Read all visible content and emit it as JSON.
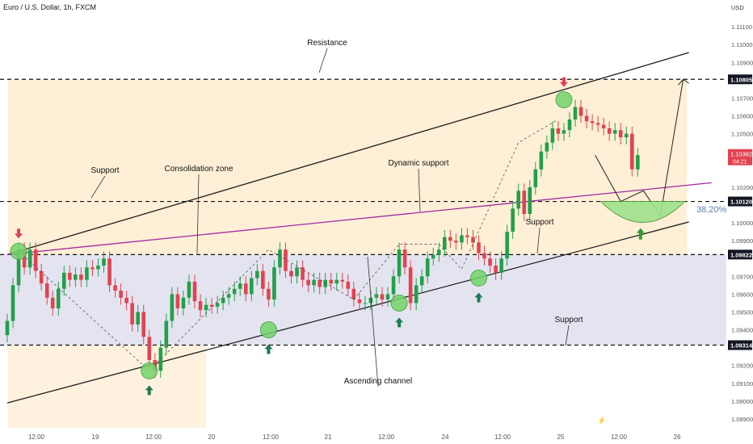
{
  "header": {
    "title": "Euro / U.S. Dollar, 1h, FXCM"
  },
  "colors": {
    "up": "#22a049",
    "down": "#e2434f",
    "resistance_zone": "#fde9c8",
    "support_zone": "#ddddee",
    "channel": "#1f1f1f",
    "dynamic_support": "#a02aa0",
    "target_zone": "#9ee28b",
    "marker": "#74d46a",
    "arrow_up": "#1e7a52",
    "arrow_down": "#e0405a"
  },
  "chart_data": {
    "type": "candlestick",
    "symbol": "Euro / U.S. Dollar",
    "timeframe": "1h",
    "source": "FXCM",
    "y_axis_label": "USD",
    "yrange": [
      1.0885,
      1.1125
    ],
    "y_ticks": [
      "1.11100",
      "1.11000",
      "1.10900",
      "1.10700",
      "1.10600",
      "1.10500",
      "1.10200",
      "1.10000",
      "1.09900",
      "1.09700",
      "1.09600",
      "1.09500",
      "1.09400",
      "1.09200",
      "1.09100",
      "1.09000",
      "1.08900"
    ],
    "x_ticks": [
      "12:00",
      "19",
      "12:00",
      "20",
      "12:00",
      "21",
      "12:00",
      "24",
      "12:00",
      "25",
      "12:00",
      "26"
    ],
    "current_price": {
      "value": "1.10382",
      "time": "04:21"
    },
    "levels": [
      {
        "value": 1.10805,
        "label": "1.10805"
      },
      {
        "value": 1.1012,
        "label": "1.10120"
      },
      {
        "value": 1.09822,
        "label": "1.09822"
      },
      {
        "value": 1.09314,
        "label": "1.09314"
      }
    ],
    "fib_label": "38.20%",
    "annotations": [
      "Resistance",
      "Support",
      "Consolidation zone",
      "Dynamic support",
      "Support",
      "Support",
      "Ascending channel"
    ],
    "channel": {
      "upper": [
        [
          0,
          1.09822
        ],
        [
          120,
          1.10955
        ]
      ],
      "lower": [
        [
          0,
          1.0899
        ],
        [
          120,
          1.10005
        ]
      ]
    },
    "dynamic_support": [
      [
        0,
        1.09822
      ],
      [
        124,
        1.10225
      ]
    ],
    "projection": [
      [
        103.5,
        1.1038
      ],
      [
        108,
        1.1012
      ],
      [
        112,
        1.1018
      ],
      [
        115,
        1.1004
      ],
      [
        119,
        1.10805
      ]
    ],
    "closes": [
      1.0945,
      1.0965,
      1.0985,
      1.0975,
      1.0985,
      1.0973,
      1.0966,
      1.0958,
      1.0952,
      1.0963,
      1.0972,
      1.0968,
      1.0971,
      1.0968,
      1.0975,
      1.0974,
      1.0976,
      1.098,
      1.0965,
      1.0962,
      1.0958,
      1.0955,
      1.0943,
      1.095,
      1.0936,
      1.0923,
      1.0917,
      1.093,
      1.0945,
      1.096,
      1.0952,
      1.0958,
      1.0967,
      1.0956,
      1.0951,
      1.0954,
      1.0953,
      1.0955,
      1.0958,
      1.096,
      1.0963,
      1.0966,
      1.096,
      1.0969,
      1.0973,
      1.0963,
      1.0957,
      1.0975,
      1.0985,
      1.0973,
      1.097,
      1.0975,
      1.0968,
      1.0965,
      1.0968,
      1.0964,
      1.0968,
      1.0966,
      1.0968,
      1.0967,
      1.0963,
      1.0957,
      1.0955,
      1.0955,
      1.0958,
      1.096,
      1.0957,
      1.096,
      1.097,
      1.0985,
      1.0975,
      1.0955,
      1.0965,
      1.097,
      1.098,
      1.0982,
      1.0985,
      1.0992,
      1.099,
      1.0989,
      1.0993,
      1.0992,
      1.0989,
      1.0983,
      1.098,
      1.0976,
      1.0972,
      1.098,
      1.0995,
      1.1008,
      1.1018,
      1.1005,
      1.102,
      1.103,
      1.104,
      1.1045,
      1.1053,
      1.105,
      1.1052,
      1.1058,
      1.1065,
      1.106,
      1.1057,
      1.1056,
      1.1055,
      1.1053,
      1.105,
      1.1052,
      1.1048,
      1.105,
      1.103,
      1.1038
    ]
  }
}
